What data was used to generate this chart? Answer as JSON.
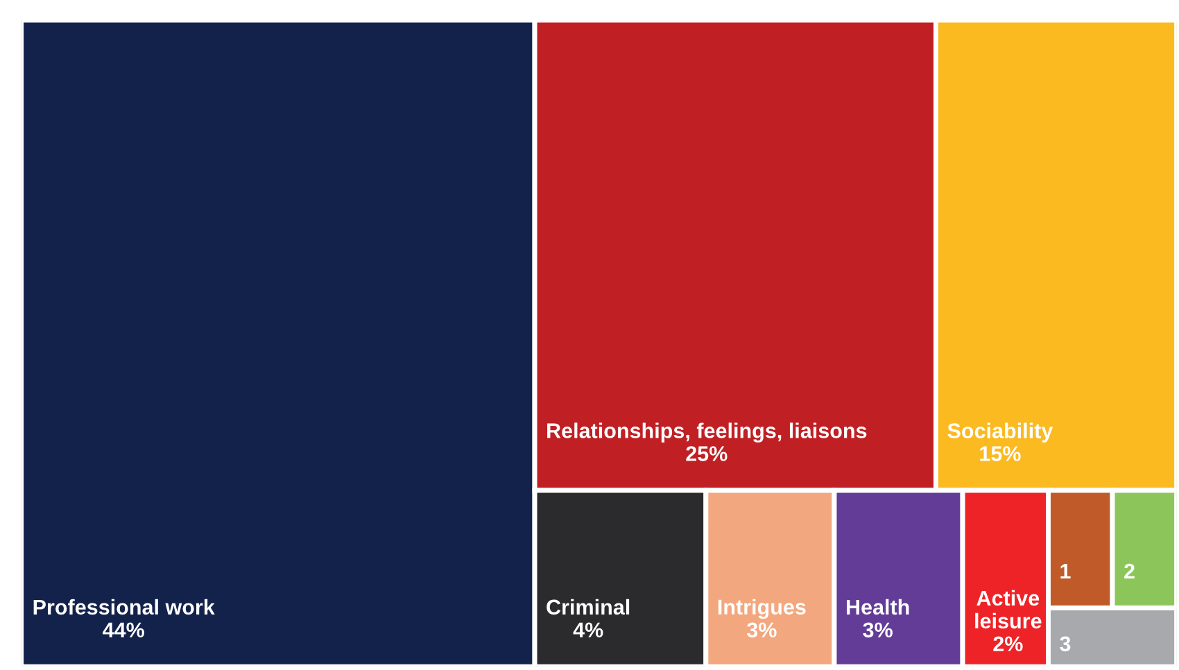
{
  "chart_data": {
    "type": "other",
    "categories": [
      "Professional work",
      "Relationships, feelings, liaisons",
      "Sociability",
      "Criminal",
      "Intrigues",
      "Health",
      "Active leisure",
      "1",
      "2",
      "3"
    ],
    "values": [
      44,
      25,
      15,
      4,
      3,
      3,
      2,
      null,
      null,
      null
    ],
    "value_labels": [
      "44%",
      "25%",
      "15%",
      "4%",
      "3%",
      "3%",
      "2%",
      null,
      null,
      null
    ],
    "colors": [
      "#12224a",
      "#c01f24",
      "#fbba1f",
      "#2b2b2d",
      "#f2a77e",
      "#633c97",
      "#ed2328",
      "#c05a28",
      "#8cc65a",
      "#a7a9ac"
    ]
  }
}
